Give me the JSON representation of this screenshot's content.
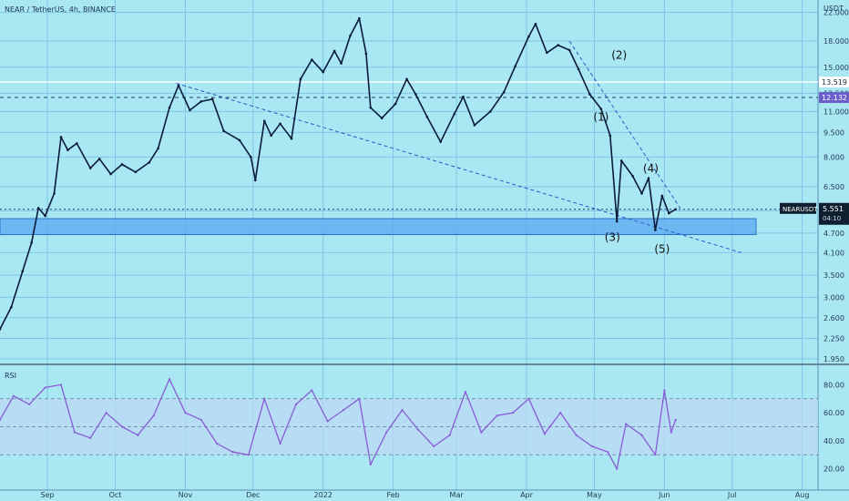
{
  "header": {
    "title": "NEAR / TetherUS, 4h, BINANCE"
  },
  "price_axis": {
    "unit": "USDT"
  },
  "rsi_panel": {
    "label": "RSI"
  },
  "price_tag": {
    "symbol": "NEARUSDT",
    "price": "5.551",
    "countdown": "04:10"
  },
  "level_tags": [
    {
      "value": "13.519"
    },
    {
      "value": "12.132"
    }
  ],
  "wave_labels": [
    "(1)",
    "(2)",
    "(3)",
    "(4)",
    "(5)"
  ],
  "colors": {
    "background": "#a9e8f3",
    "candle": "#0a1a3a",
    "rsi_line": "#8a5bd6",
    "rsi_band": "#bcd9f4",
    "support_zone": "#5ba8f2",
    "trendline": "#2a56c6",
    "price_tag_bg": "#0f1f2f",
    "level_tag_bg": "#6a5ec9"
  },
  "chart_data": [
    {
      "type": "line",
      "title": "NEAR / TetherUS, 4h, BINANCE",
      "y_scale": "log",
      "ylim": [
        1.9,
        24.0
      ],
      "y_ticks": [
        "1.950",
        "2.250",
        "2.600",
        "3.000",
        "3.500",
        "4.100",
        "4.700",
        "5.500",
        "6.500",
        "8.000",
        "9.500",
        "11.000",
        "12.500",
        "15.000",
        "18.000",
        "22.000"
      ],
      "x_ticks": [
        "Sep",
        "Oct",
        "Nov",
        "Dec",
        "2022",
        "Feb",
        "Mar",
        "Apr",
        "May",
        "Jun",
        "Jul",
        "Aug"
      ],
      "x_range": [
        "2021-08-11",
        "2022-08-08"
      ],
      "series": [
        {
          "points": [
            [
              "2021-08-11",
              2.4
            ],
            [
              "2021-08-16",
              2.8
            ],
            [
              "2021-08-21",
              3.6
            ],
            [
              "2021-08-25",
              4.4
            ],
            [
              "2021-08-28",
              5.6
            ],
            [
              "2021-08-31",
              5.3
            ],
            [
              "2021-09-04",
              6.2
            ],
            [
              "2021-09-07",
              9.2
            ],
            [
              "2021-09-10",
              8.4
            ],
            [
              "2021-09-14",
              8.8
            ],
            [
              "2021-09-20",
              7.4
            ],
            [
              "2021-09-24",
              7.9
            ],
            [
              "2021-09-29",
              7.1
            ],
            [
              "2021-10-04",
              7.6
            ],
            [
              "2021-10-10",
              7.2
            ],
            [
              "2021-10-16",
              7.7
            ],
            [
              "2021-10-20",
              8.5
            ],
            [
              "2021-10-25",
              11.3
            ],
            [
              "2021-10-29",
              13.2
            ],
            [
              "2021-11-03",
              11.1
            ],
            [
              "2021-11-08",
              11.8
            ],
            [
              "2021-11-13",
              12.0
            ],
            [
              "2021-11-18",
              9.6
            ],
            [
              "2021-11-25",
              9.0
            ],
            [
              "2021-11-30",
              8.0
            ],
            [
              "2021-12-02",
              6.8
            ],
            [
              "2021-12-06",
              10.3
            ],
            [
              "2021-12-09",
              9.3
            ],
            [
              "2021-12-13",
              10.1
            ],
            [
              "2021-12-18",
              9.1
            ],
            [
              "2021-12-22",
              13.8
            ],
            [
              "2021-12-27",
              15.8
            ],
            [
              "2022-01-01",
              14.5
            ],
            [
              "2022-01-06",
              16.8
            ],
            [
              "2022-01-09",
              15.4
            ],
            [
              "2022-01-13",
              18.7
            ],
            [
              "2022-01-17",
              21.1
            ],
            [
              "2022-01-20",
              16.5
            ],
            [
              "2022-01-22",
              11.3
            ],
            [
              "2022-01-27",
              10.5
            ],
            [
              "2022-02-02",
              11.6
            ],
            [
              "2022-02-07",
              13.8
            ],
            [
              "2022-02-11",
              12.4
            ],
            [
              "2022-02-16",
              10.6
            ],
            [
              "2022-02-22",
              8.9
            ],
            [
              "2022-02-28",
              10.8
            ],
            [
              "2022-03-04",
              12.2
            ],
            [
              "2022-03-09",
              10.0
            ],
            [
              "2022-03-16",
              11.0
            ],
            [
              "2022-03-22",
              12.6
            ],
            [
              "2022-03-27",
              15.1
            ],
            [
              "2022-04-02",
              18.6
            ],
            [
              "2022-04-05",
              20.3
            ],
            [
              "2022-04-10",
              16.6
            ],
            [
              "2022-04-15",
              17.5
            ],
            [
              "2022-04-20",
              16.9
            ],
            [
              "2022-04-24",
              14.8
            ],
            [
              "2022-04-29",
              12.4
            ],
            [
              "2022-05-04",
              11.2
            ],
            [
              "2022-05-08",
              9.3
            ],
            [
              "2022-05-11",
              5.1
            ],
            [
              "2022-05-13",
              7.8
            ],
            [
              "2022-05-18",
              7.0
            ],
            [
              "2022-05-22",
              6.2
            ],
            [
              "2022-05-25",
              6.9
            ],
            [
              "2022-05-28",
              4.8
            ],
            [
              "2022-05-31",
              6.1
            ],
            [
              "2022-06-03",
              5.4
            ],
            [
              "2022-06-06",
              5.55
            ]
          ]
        }
      ],
      "support_zone": [
        4.65,
        5.2
      ],
      "levels": [
        12.132,
        13.519,
        5.551
      ],
      "trendlines": [
        [
          [
            "2021-10-28",
            13.4
          ],
          [
            "2022-07-05",
            4.1
          ]
        ],
        [
          [
            "2022-04-20",
            18.0
          ],
          [
            "2022-06-08",
            5.6
          ]
        ]
      ],
      "annotations": [
        {
          "text": "(1)",
          "x": "2022-05-04",
          "y": 10.3
        },
        {
          "text": "(2)",
          "x": "2022-05-12",
          "y": 15.9
        },
        {
          "text": "(3)",
          "x": "2022-05-09",
          "y": 4.45
        },
        {
          "text": "(4)",
          "x": "2022-05-26",
          "y": 7.2
        },
        {
          "text": "(5)",
          "x": "2022-05-31",
          "y": 4.1
        }
      ]
    },
    {
      "type": "line",
      "title": "RSI",
      "ylim": [
        10,
        90
      ],
      "y_ticks": [
        "20.00",
        "40.00",
        "60.00",
        "80.00"
      ],
      "bands": [
        30,
        50,
        70
      ],
      "series": [
        {
          "points": [
            [
              "2021-08-11",
              55
            ],
            [
              "2021-08-17",
              72
            ],
            [
              "2021-08-24",
              66
            ],
            [
              "2021-08-31",
              78
            ],
            [
              "2021-09-07",
              80
            ],
            [
              "2021-09-13",
              46
            ],
            [
              "2021-09-20",
              42
            ],
            [
              "2021-09-27",
              60
            ],
            [
              "2021-10-04",
              50
            ],
            [
              "2021-10-11",
              44
            ],
            [
              "2021-10-18",
              58
            ],
            [
              "2021-10-25",
              84
            ],
            [
              "2021-11-01",
              60
            ],
            [
              "2021-11-08",
              55
            ],
            [
              "2021-11-15",
              38
            ],
            [
              "2021-11-22",
              32
            ],
            [
              "2021-11-29",
              30
            ],
            [
              "2021-12-06",
              70
            ],
            [
              "2021-12-13",
              38
            ],
            [
              "2021-12-20",
              66
            ],
            [
              "2021-12-27",
              76
            ],
            [
              "2022-01-03",
              54
            ],
            [
              "2022-01-10",
              62
            ],
            [
              "2022-01-17",
              70
            ],
            [
              "2022-01-22",
              23
            ],
            [
              "2022-01-29",
              46
            ],
            [
              "2022-02-05",
              62
            ],
            [
              "2022-02-12",
              48
            ],
            [
              "2022-02-19",
              36
            ],
            [
              "2022-02-26",
              44
            ],
            [
              "2022-03-05",
              75
            ],
            [
              "2022-03-12",
              46
            ],
            [
              "2022-03-19",
              58
            ],
            [
              "2022-03-26",
              60
            ],
            [
              "2022-04-02",
              70
            ],
            [
              "2022-04-09",
              45
            ],
            [
              "2022-04-16",
              60
            ],
            [
              "2022-04-23",
              44
            ],
            [
              "2022-04-30",
              36
            ],
            [
              "2022-05-07",
              32
            ],
            [
              "2022-05-11",
              20
            ],
            [
              "2022-05-15",
              52
            ],
            [
              "2022-05-22",
              44
            ],
            [
              "2022-05-28",
              30
            ],
            [
              "2022-06-01",
              76
            ],
            [
              "2022-06-04",
              46
            ],
            [
              "2022-06-06",
              55
            ]
          ]
        }
      ]
    }
  ]
}
